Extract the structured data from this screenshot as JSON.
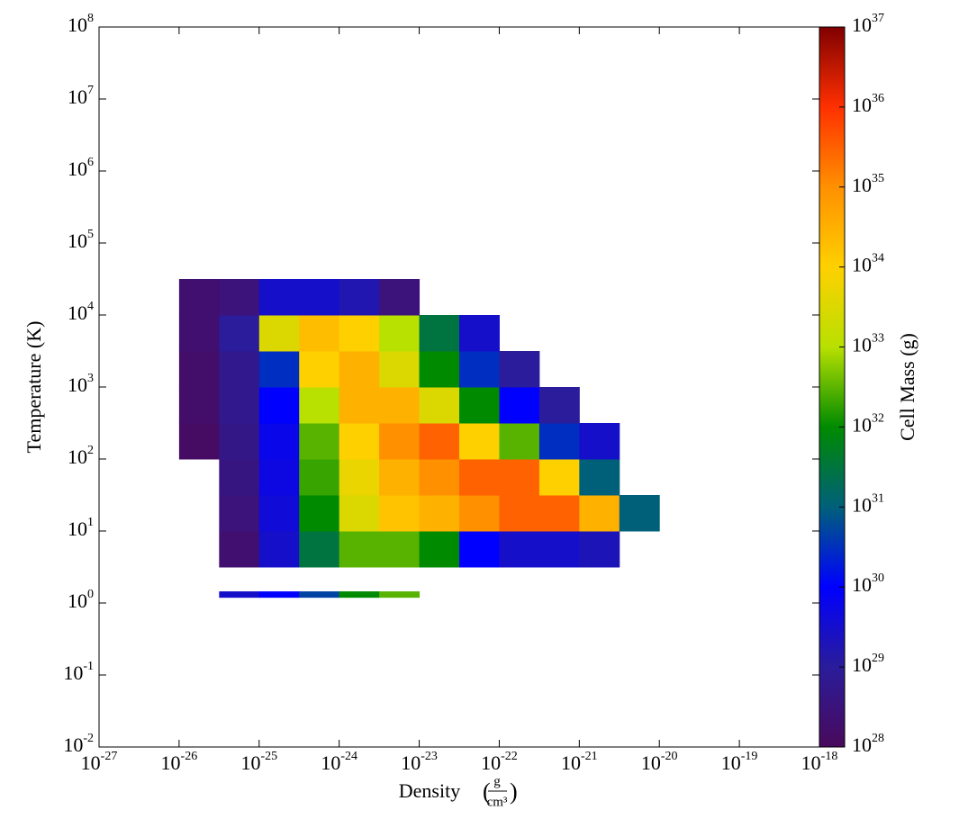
{
  "chart_data": {
    "type": "heatmap",
    "xlabel": "Density",
    "xunit_numerator": "g",
    "xunit_denominator": "cm³",
    "ylabel": "Temperature  (K)",
    "colorbar_label": "Cell Mass  (g)",
    "xscale": "log",
    "yscale": "log",
    "colorscale": "log",
    "xlim": [
      1e-27,
      1e-18
    ],
    "xticks": [
      {
        "value": 1e-27,
        "label": "10",
        "exponent": "-27"
      },
      {
        "value": 1e-26,
        "label": "10",
        "exponent": "-26"
      },
      {
        "value": 1e-25,
        "label": "10",
        "exponent": "-25"
      },
      {
        "value": 1e-24,
        "label": "10",
        "exponent": "-24"
      },
      {
        "value": 1e-23,
        "label": "10",
        "exponent": "-23"
      },
      {
        "value": 1e-22,
        "label": "10",
        "exponent": "-22"
      },
      {
        "value": 1e-21,
        "label": "10",
        "exponent": "-21"
      },
      {
        "value": 1e-20,
        "label": "10",
        "exponent": "-20"
      },
      {
        "value": 1e-19,
        "label": "10",
        "exponent": "-19"
      },
      {
        "value": 1e-18,
        "label": "10",
        "exponent": "-18"
      }
    ],
    "ylim": [
      0.01,
      100000000
    ],
    "yticks": [
      {
        "value": 0.01,
        "label": "10",
        "exponent": "-2"
      },
      {
        "value": 0.1,
        "label": "10",
        "exponent": "-1"
      },
      {
        "value": 1,
        "label": "10",
        "exponent": "0"
      },
      {
        "value": 10,
        "label": "10",
        "exponent": "1"
      },
      {
        "value": 100,
        "label": "10",
        "exponent": "2"
      },
      {
        "value": 1000,
        "label": "10",
        "exponent": "3"
      },
      {
        "value": 10000,
        "label": "10",
        "exponent": "4"
      },
      {
        "value": 100000,
        "label": "10",
        "exponent": "5"
      },
      {
        "value": 1000000,
        "label": "10",
        "exponent": "6"
      },
      {
        "value": 10000000,
        "label": "10",
        "exponent": "7"
      },
      {
        "value": 100000000,
        "label": "10",
        "exponent": "8"
      }
    ],
    "clim": [
      1e+28,
      1e+37
    ],
    "cticks": [
      {
        "value": 1e+28,
        "label": "10",
        "exponent": "28"
      },
      {
        "value": 1e+29,
        "label": "10",
        "exponent": "29"
      },
      {
        "value": 1e+30,
        "label": "10",
        "exponent": "30"
      },
      {
        "value": 1e+31,
        "label": "10",
        "exponent": "31"
      },
      {
        "value": 1e+32,
        "label": "10",
        "exponent": "32"
      },
      {
        "value": 1e+33,
        "label": "10",
        "exponent": "33"
      },
      {
        "value": 1e+34,
        "label": "10",
        "exponent": "34"
      },
      {
        "value": 1e+35,
        "label": "10",
        "exponent": "35"
      },
      {
        "value": 1e+36,
        "label": "10",
        "exponent": "36"
      },
      {
        "value": 1e+37,
        "label": "10",
        "exponent": "37"
      }
    ],
    "colormap": [
      "#4a0a5c",
      "#2a1c9a",
      "#0000ff",
      "#00607a",
      "#008a00",
      "#b8e000",
      "#ffd000",
      "#ff9000",
      "#ff3000",
      "#800000"
    ],
    "xbins": [
      1e-26,
      3.162e-26,
      1e-25,
      3.162e-25,
      1e-24,
      3.162e-24,
      1e-23,
      3.162e-23,
      1e-22,
      3.162e-22,
      1e-21,
      3.162e-21,
      1e-20
    ],
    "ybins": [
      1.2,
      1.45,
      3.162,
      10,
      31.62,
      100,
      316.2,
      1000,
      3162,
      10000,
      31620
    ],
    "z": [
      [
        null,
        3e+29,
        1e+30,
        5e+30,
        1e+32,
        3e+32,
        null,
        null,
        null,
        null,
        null,
        null
      ],
      [
        null,
        null,
        null,
        null,
        null,
        null,
        null,
        null,
        null,
        null,
        null,
        null
      ],
      [
        null,
        2e+28,
        3e+29,
        3e+31,
        3e+32,
        3e+32,
        1e+32,
        1e+30,
        3e+29,
        3e+29,
        2e+29,
        null
      ],
      [
        null,
        3e+28,
        4e+29,
        1e+32,
        3e+33,
        1.6e+34,
        3e+34,
        1e+35,
        3e+35,
        3e+35,
        3e+34,
        1e+31
      ],
      [
        null,
        4e+28,
        5e+29,
        2e+32,
        5e+33,
        3e+34,
        1e+35,
        3e+35,
        3e+35,
        1e+34,
        1e+31,
        null
      ],
      [
        1.3e+28,
        5e+28,
        6e+29,
        3e+32,
        1e+34,
        1e+35,
        3e+35,
        1e+34,
        3e+32,
        3e+30,
        3e+29,
        null
      ],
      [
        1.6e+28,
        6e+28,
        1e+30,
        1e+33,
        3e+34,
        3e+34,
        3e+33,
        1e+32,
        1e+30,
        1e+29,
        null,
        null
      ],
      [
        1.6e+28,
        6e+28,
        3e+30,
        1e+34,
        3e+34,
        3e+33,
        1e+32,
        3e+30,
        1e+29,
        null,
        null,
        null
      ],
      [
        2e+28,
        1e+29,
        3e+33,
        2e+34,
        1e+34,
        1e+33,
        3e+31,
        3e+29,
        null,
        null,
        null,
        null
      ],
      [
        2e+28,
        3e+28,
        3e+29,
        3e+29,
        1.6e+29,
        3e+28,
        null,
        null,
        null,
        null,
        null,
        null
      ]
    ]
  }
}
